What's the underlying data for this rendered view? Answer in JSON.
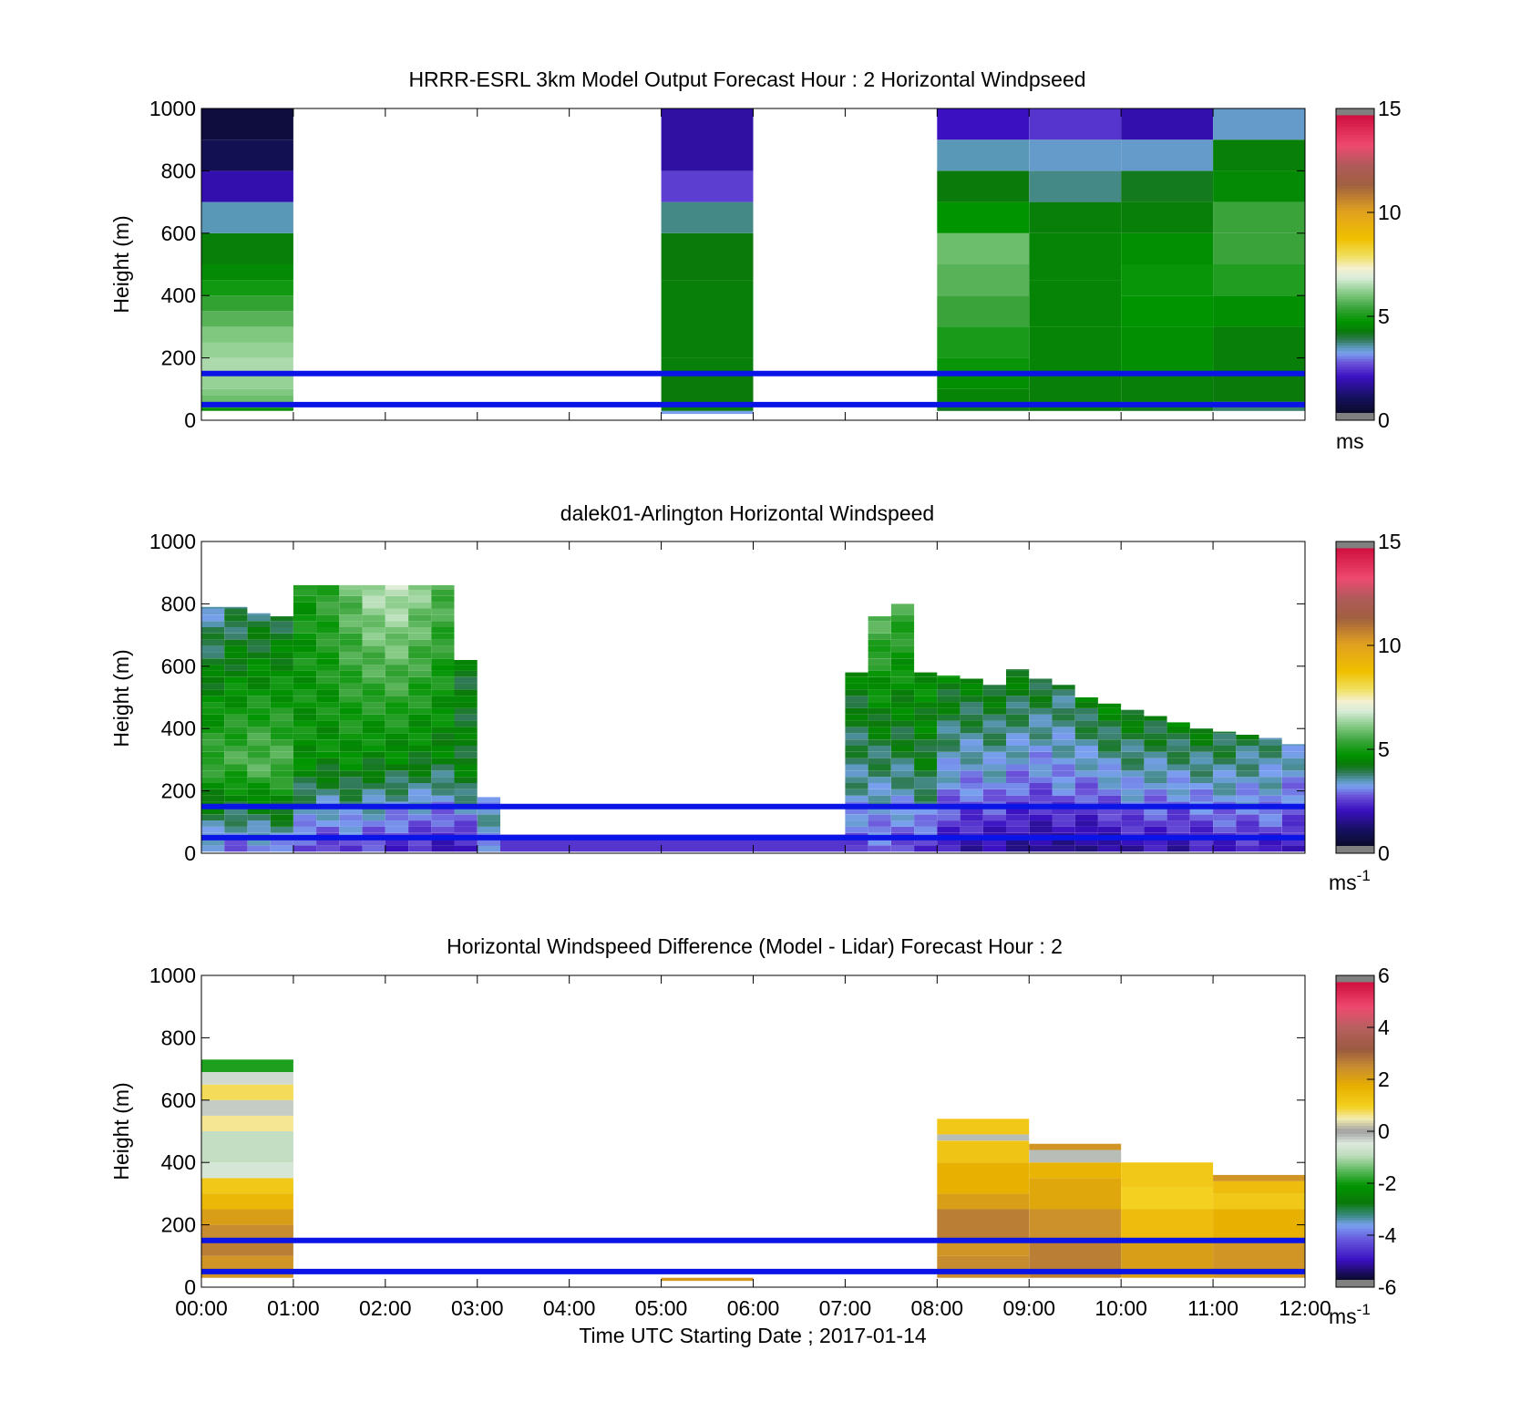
{
  "panels": [
    {
      "title": "HRRR-ESRL 3km Model Output   Forecast Hour : 2 Horizontal Windpseed",
      "ylabel": "Height (m)",
      "xlabel": "",
      "yticks": [
        "0",
        "200",
        "400",
        "600",
        "800",
        "1000"
      ],
      "cbar_ticks": [
        "0",
        "5",
        "10",
        "15"
      ],
      "cbar_unit": "ms",
      "cbar_unit_sup": ""
    },
    {
      "title": "dalek01-Arlington  Horizontal Windspeed",
      "ylabel": "Height (m)",
      "xlabel": "",
      "yticks": [
        "0",
        "200",
        "400",
        "600",
        "800",
        "1000"
      ],
      "cbar_ticks": [
        "0",
        "5",
        "10",
        "15"
      ],
      "cbar_unit": "ms",
      "cbar_unit_sup": "-1"
    },
    {
      "title": "Horizontal Windspeed Difference (Model - Lidar) Forecast Hour : 2",
      "ylabel": "Height (m)",
      "xlabel": "Time UTC  Starting Date ; 2017-01-14",
      "yticks": [
        "0",
        "200",
        "400",
        "600",
        "800",
        "1000"
      ],
      "cbar_ticks": [
        "-6",
        "-4",
        "-2",
        "0",
        "2",
        "4",
        "6"
      ],
      "cbar_unit": "ms",
      "cbar_unit_sup": "-1"
    }
  ],
  "xticks": [
    "00:00",
    "01:00",
    "02:00",
    "03:00",
    "04:00",
    "05:00",
    "06:00",
    "07:00",
    "08:00",
    "09:00",
    "10:00",
    "11:00",
    "12:00"
  ],
  "colors": {
    "reference_line": "#0a14e6",
    "no_data": "#ffffff",
    "cbar_end": "#808080"
  },
  "chart_data": [
    {
      "type": "heatmap",
      "title": "HRRR-ESRL 3km Model Output   Forecast Hour : 2 Horizontal Windpseed",
      "ylabel": "Height (m)",
      "x_range": [
        "00:00",
        "12:00"
      ],
      "ylim": [
        0,
        1000
      ],
      "clim": [
        0,
        15
      ],
      "colorbar_label": "ms",
      "reference_lines_height_m": [
        150,
        50
      ],
      "columns": [
        {
          "start": "00:00",
          "end": "01:00",
          "cells": [
            [
              30,
              40,
              4.5
            ],
            [
              40,
              60,
              5.2
            ],
            [
              60,
              80,
              5.8
            ],
            [
              80,
              100,
              6.0
            ],
            [
              100,
              150,
              6.2
            ],
            [
              150,
              200,
              6.4
            ],
            [
              200,
              250,
              6.2
            ],
            [
              250,
              300,
              6.0
            ],
            [
              300,
              350,
              5.6
            ],
            [
              350,
              400,
              5.2
            ],
            [
              400,
              450,
              4.8
            ],
            [
              450,
              500,
              4.4
            ],
            [
              500,
              600,
              4.2
            ],
            [
              600,
              700,
              3.3
            ],
            [
              700,
              800,
              1.6
            ],
            [
              800,
              900,
              0.6
            ],
            [
              900,
              1000,
              0.3
            ]
          ]
        },
        {
          "start": "05:00",
          "end": "06:00",
          "cells": [
            [
              20,
              30,
              3.0
            ],
            [
              30,
              150,
              4.1
            ],
            [
              150,
              200,
              4.2
            ],
            [
              200,
              450,
              4.2
            ],
            [
              450,
              600,
              4.1
            ],
            [
              600,
              700,
              3.5
            ],
            [
              700,
              800,
              2.3
            ],
            [
              800,
              1000,
              1.5
            ]
          ]
        },
        {
          "start": "08:00",
          "end": "09:00",
          "cells": [
            [
              30,
              60,
              4.0
            ],
            [
              60,
              100,
              4.3
            ],
            [
              100,
              150,
              4.5
            ],
            [
              150,
              200,
              4.7
            ],
            [
              200,
              300,
              4.9
            ],
            [
              300,
              400,
              5.3
            ],
            [
              400,
              500,
              5.6
            ],
            [
              500,
              600,
              5.8
            ],
            [
              600,
              700,
              4.6
            ],
            [
              700,
              800,
              4.1
            ],
            [
              800,
              900,
              3.3
            ],
            [
              900,
              1000,
              1.8
            ]
          ]
        },
        {
          "start": "09:00",
          "end": "10:00",
          "cells": [
            [
              30,
              60,
              4.1
            ],
            [
              60,
              150,
              4.2
            ],
            [
              150,
              300,
              4.3
            ],
            [
              300,
              450,
              4.3
            ],
            [
              450,
              600,
              4.3
            ],
            [
              600,
              700,
              4.2
            ],
            [
              700,
              800,
              3.5
            ],
            [
              800,
              900,
              3.2
            ],
            [
              900,
              1000,
              2.2
            ]
          ]
        },
        {
          "start": "10:00",
          "end": "11:00",
          "cells": [
            [
              30,
              60,
              4.0
            ],
            [
              60,
              150,
              4.2
            ],
            [
              150,
              300,
              4.5
            ],
            [
              300,
              400,
              4.6
            ],
            [
              400,
              500,
              4.7
            ],
            [
              500,
              600,
              4.5
            ],
            [
              600,
              700,
              4.2
            ],
            [
              700,
              800,
              4.0
            ],
            [
              800,
              900,
              3.2
            ],
            [
              900,
              1000,
              1.6
            ]
          ]
        },
        {
          "start": "11:00",
          "end": "12:00",
          "cells": [
            [
              30,
              60,
              3.6
            ],
            [
              60,
              150,
              4.1
            ],
            [
              150,
              300,
              4.2
            ],
            [
              300,
              400,
              4.5
            ],
            [
              400,
              500,
              5.0
            ],
            [
              500,
              600,
              5.3
            ],
            [
              600,
              700,
              5.3
            ],
            [
              700,
              800,
              4.4
            ],
            [
              800,
              900,
              4.2
            ],
            [
              900,
              1000,
              3.2
            ]
          ]
        }
      ]
    },
    {
      "type": "heatmap",
      "title": "dalek01-Arlington  Horizontal Windspeed",
      "ylabel": "Height (m)",
      "x_range": [
        "00:00",
        "12:00"
      ],
      "ylim": [
        0,
        1000
      ],
      "clim": [
        0,
        15
      ],
      "colorbar_label": "ms-1",
      "reference_lines_height_m": [
        150,
        50
      ],
      "profiles": [
        {
          "start": "00:00",
          "end": "00:15",
          "top_m": 790,
          "low": 2.8,
          "mid": 5.3,
          "high": 3.2
        },
        {
          "start": "00:15",
          "end": "00:30",
          "top_m": 790,
          "low": 2.6,
          "mid": 5.4,
          "high": 3.5
        },
        {
          "start": "00:30",
          "end": "00:45",
          "top_m": 770,
          "low": 2.7,
          "mid": 5.6,
          "high": 3.6
        },
        {
          "start": "00:45",
          "end": "01:00",
          "top_m": 760,
          "low": 2.9,
          "mid": 5.5,
          "high": 3.8
        },
        {
          "start": "01:00",
          "end": "01:15",
          "top_m": 860,
          "low": 2.4,
          "mid": 4.6,
          "high": 4.8
        },
        {
          "start": "01:15",
          "end": "01:30",
          "top_m": 860,
          "low": 2.2,
          "mid": 4.5,
          "high": 5.2
        },
        {
          "start": "01:30",
          "end": "01:45",
          "top_m": 860,
          "low": 2.4,
          "mid": 4.6,
          "high": 5.8
        },
        {
          "start": "01:45",
          "end": "02:00",
          "top_m": 860,
          "low": 2.3,
          "mid": 4.4,
          "high": 6.5
        },
        {
          "start": "02:00",
          "end": "02:15",
          "top_m": 860,
          "low": 2.1,
          "mid": 4.4,
          "high": 6.7
        },
        {
          "start": "02:15",
          "end": "02:30",
          "top_m": 860,
          "low": 2.0,
          "mid": 4.3,
          "high": 6.2
        },
        {
          "start": "02:30",
          "end": "02:45",
          "top_m": 860,
          "low": 1.8,
          "mid": 4.2,
          "high": 5.6
        },
        {
          "start": "02:45",
          "end": "03:00",
          "top_m": 620,
          "low": 1.7,
          "mid": 4.1,
          "high": 4.0
        },
        {
          "start": "03:00",
          "end": "03:15",
          "top_m": 180,
          "low": 3.0,
          "mid": 3.2,
          "high": 3.2
        },
        {
          "start": "07:00",
          "end": "07:15",
          "top_m": 580,
          "low": 2.4,
          "mid": 3.4,
          "high": 4.3
        },
        {
          "start": "07:15",
          "end": "07:30",
          "top_m": 760,
          "low": 2.6,
          "mid": 3.6,
          "high": 5.6
        },
        {
          "start": "07:30",
          "end": "07:45",
          "top_m": 800,
          "low": 2.4,
          "mid": 3.7,
          "high": 5.4
        },
        {
          "start": "07:45",
          "end": "08:00",
          "top_m": 580,
          "low": 2.2,
          "mid": 3.8,
          "high": 4.6
        },
        {
          "start": "08:00",
          "end": "08:15",
          "top_m": 570,
          "low": 1.8,
          "mid": 2.9,
          "high": 4.4
        },
        {
          "start": "08:15",
          "end": "08:30",
          "top_m": 560,
          "low": 1.6,
          "mid": 2.8,
          "high": 4.3
        },
        {
          "start": "08:30",
          "end": "08:45",
          "top_m": 540,
          "low": 1.5,
          "mid": 2.9,
          "high": 4.2
        },
        {
          "start": "08:45",
          "end": "09:00",
          "top_m": 590,
          "low": 1.4,
          "mid": 2.7,
          "high": 4.3
        },
        {
          "start": "09:00",
          "end": "09:15",
          "top_m": 560,
          "low": 1.2,
          "mid": 2.6,
          "high": 4.1
        },
        {
          "start": "09:15",
          "end": "09:30",
          "top_m": 540,
          "low": 1.3,
          "mid": 2.8,
          "high": 3.8
        },
        {
          "start": "09:30",
          "end": "09:45",
          "top_m": 500,
          "low": 1.2,
          "mid": 2.6,
          "high": 4.2
        },
        {
          "start": "09:45",
          "end": "10:00",
          "top_m": 480,
          "low": 1.4,
          "mid": 2.7,
          "high": 4.4
        },
        {
          "start": "10:00",
          "end": "10:15",
          "top_m": 460,
          "low": 1.6,
          "mid": 2.9,
          "high": 4.3
        },
        {
          "start": "10:15",
          "end": "10:30",
          "top_m": 440,
          "low": 1.7,
          "mid": 2.8,
          "high": 4.2
        },
        {
          "start": "10:30",
          "end": "10:45",
          "top_m": 420,
          "low": 1.6,
          "mid": 2.7,
          "high": 4.3
        },
        {
          "start": "10:45",
          "end": "11:00",
          "top_m": 400,
          "low": 1.8,
          "mid": 2.8,
          "high": 4.2
        },
        {
          "start": "11:00",
          "end": "11:15",
          "top_m": 390,
          "low": 1.9,
          "mid": 2.9,
          "high": 4.0
        },
        {
          "start": "11:15",
          "end": "11:30",
          "top_m": 380,
          "low": 2.0,
          "mid": 2.8,
          "high": 3.9
        },
        {
          "start": "11:30",
          "end": "11:45",
          "top_m": 370,
          "low": 1.9,
          "mid": 2.9,
          "high": 3.6
        },
        {
          "start": "11:45",
          "end": "12:00",
          "top_m": 350,
          "low": 1.8,
          "mid": 2.6,
          "high": 3.4
        }
      ],
      "low_level_segments": [
        {
          "start": "03:00",
          "end": "07:00",
          "top_m": 60,
          "value": 2.2
        }
      ]
    },
    {
      "type": "heatmap",
      "title": "Horizontal Windspeed Difference (Model - Lidar) Forecast Hour : 2",
      "ylabel": "Height (m)",
      "xlabel": "Time UTC  Starting Date ; 2017-01-14",
      "x_range": [
        "00:00",
        "12:00"
      ],
      "ylim": [
        0,
        1000
      ],
      "clim": [
        -6,
        6
      ],
      "colorbar_label": "ms-1",
      "reference_lines_height_m": [
        150,
        50
      ],
      "columns": [
        {
          "start": "00:00",
          "end": "01:00",
          "cells": [
            [
              30,
              100,
              2.4
            ],
            [
              100,
              150,
              2.8
            ],
            [
              150,
              200,
              2.6
            ],
            [
              200,
              250,
              2.2
            ],
            [
              250,
              300,
              1.6
            ],
            [
              300,
              350,
              1.2
            ],
            [
              350,
              400,
              -0.6
            ],
            [
              400,
              500,
              -0.9
            ],
            [
              500,
              550,
              0.6
            ],
            [
              550,
              600,
              -0.3
            ],
            [
              600,
              650,
              0.8
            ],
            [
              650,
              690,
              -0.4
            ],
            [
              690,
              730,
              -2.0
            ]
          ]
        },
        {
          "start": "05:00",
          "end": "06:00",
          "cells": [
            [
              20,
              30,
              2.3
            ]
          ]
        },
        {
          "start": "08:00",
          "end": "09:00",
          "cells": [
            [
              30,
              100,
              2.6
            ],
            [
              100,
              150,
              2.4
            ],
            [
              150,
              250,
              2.8
            ],
            [
              250,
              300,
              2.2
            ],
            [
              300,
              400,
              1.8
            ],
            [
              400,
              470,
              1.3
            ],
            [
              470,
              490,
              -0.2
            ],
            [
              490,
              540,
              1.2
            ]
          ]
        },
        {
          "start": "09:00",
          "end": "10:00",
          "cells": [
            [
              30,
              150,
              2.8
            ],
            [
              150,
              250,
              2.5
            ],
            [
              250,
              350,
              2.0
            ],
            [
              350,
              400,
              1.7
            ],
            [
              400,
              440,
              -0.2
            ],
            [
              440,
              460,
              2.4
            ]
          ]
        },
        {
          "start": "10:00",
          "end": "11:00",
          "cells": [
            [
              30,
              150,
              2.2
            ],
            [
              150,
              250,
              1.5
            ],
            [
              250,
              320,
              1.0
            ],
            [
              320,
              400,
              1.2
            ]
          ]
        },
        {
          "start": "11:00",
          "end": "12:00",
          "cells": [
            [
              30,
              150,
              2.4
            ],
            [
              150,
              250,
              1.8
            ],
            [
              250,
              300,
              1.2
            ],
            [
              300,
              340,
              1.5
            ],
            [
              340,
              360,
              2.4
            ]
          ]
        }
      ]
    }
  ]
}
